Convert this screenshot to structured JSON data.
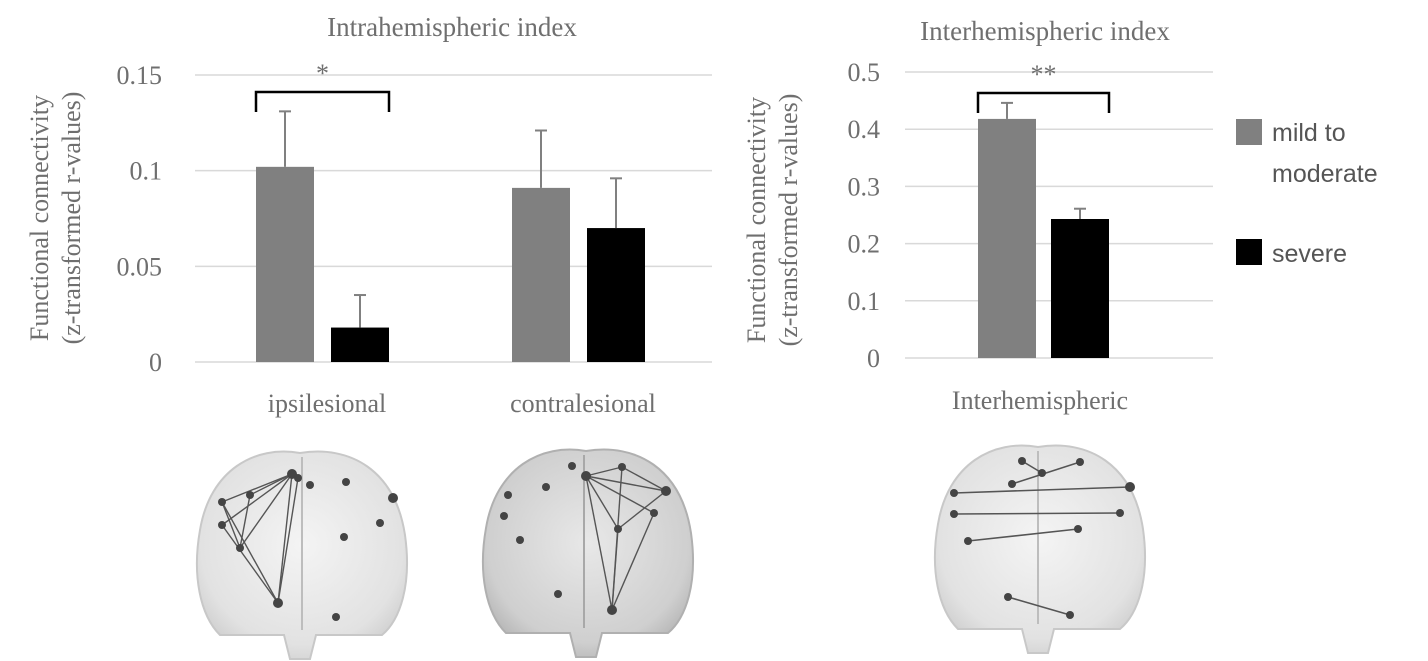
{
  "chart_data": [
    {
      "type": "bar",
      "title": "Intrahemispheric index",
      "ylabel_line1": "Functional connectivity",
      "ylabel_line2": "(z-transformed r-values)",
      "categories": [
        "ipsilesional",
        "contralesional"
      ],
      "series": [
        {
          "name": "mild to moderate",
          "color": "#808080",
          "values": [
            0.102,
            0.091
          ],
          "errors": [
            0.029,
            0.03
          ]
        },
        {
          "name": "severe",
          "color": "#000000",
          "values": [
            0.018,
            0.07
          ],
          "errors": [
            0.017,
            0.026
          ]
        }
      ],
      "ylim": [
        0,
        0.15
      ],
      "yticks": [
        "0",
        "0.05",
        "0.1",
        "0.15"
      ],
      "ytick_values": [
        0,
        0.05,
        0.1,
        0.15
      ],
      "grid": true,
      "significance": {
        "category_index": 0,
        "label": "*"
      }
    },
    {
      "type": "bar",
      "title": "Interhemispheric index",
      "ylabel_line1": "Functional connectivity",
      "ylabel_line2": "(z-transformed r-values)",
      "categories": [
        "Interhemispheric"
      ],
      "series": [
        {
          "name": "mild to moderate",
          "color": "#808080",
          "values": [
            0.418
          ],
          "errors": [
            0.028
          ]
        },
        {
          "name": "severe",
          "color": "#000000",
          "values": [
            0.243
          ],
          "errors": [
            0.018
          ]
        }
      ],
      "ylim": [
        0,
        0.5
      ],
      "yticks": [
        "0",
        "0.1",
        "0.2",
        "0.3",
        "0.4",
        "0.5"
      ],
      "ytick_values": [
        0,
        0.1,
        0.2,
        0.3,
        0.4,
        0.5
      ],
      "grid": true,
      "significance": {
        "category_index": 0,
        "label": "**"
      },
      "legend": {
        "placement": "right",
        "entries": [
          {
            "line1": "mild to",
            "line2": "moderate",
            "color": "#808080"
          },
          {
            "line1": "severe",
            "line2": "",
            "color": "#000000"
          }
        ]
      }
    }
  ],
  "brain_images": [
    {
      "name": "ipsilesional-network",
      "edges": 10,
      "shade": "light"
    },
    {
      "name": "contralesional-network",
      "edges": 10,
      "shade": "dark"
    },
    {
      "name": "interhemispheric-network",
      "edges": 6,
      "shade": "light"
    }
  ]
}
